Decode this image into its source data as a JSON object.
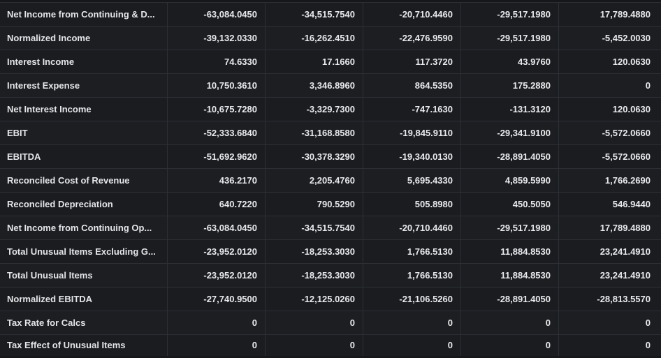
{
  "table": {
    "rows": [
      {
        "label": "Net Income from Continuing & D...",
        "values": [
          "-63,084.0450",
          "-34,515.7540",
          "-20,710.4460",
          "-29,517.1980",
          "17,789.4880"
        ]
      },
      {
        "label": "Normalized Income",
        "values": [
          "-39,132.0330",
          "-16,262.4510",
          "-22,476.9590",
          "-29,517.1980",
          "-5,452.0030"
        ]
      },
      {
        "label": "Interest Income",
        "values": [
          "74.6330",
          "17.1660",
          "117.3720",
          "43.9760",
          "120.0630"
        ]
      },
      {
        "label": "Interest Expense",
        "values": [
          "10,750.3610",
          "3,346.8960",
          "864.5350",
          "175.2880",
          "0"
        ]
      },
      {
        "label": "Net Interest Income",
        "values": [
          "-10,675.7280",
          "-3,329.7300",
          "-747.1630",
          "-131.3120",
          "120.0630"
        ]
      },
      {
        "label": "EBIT",
        "values": [
          "-52,333.6840",
          "-31,168.8580",
          "-19,845.9110",
          "-29,341.9100",
          "-5,572.0660"
        ]
      },
      {
        "label": "EBITDA",
        "values": [
          "-51,692.9620",
          "-30,378.3290",
          "-19,340.0130",
          "-28,891.4050",
          "-5,572.0660"
        ]
      },
      {
        "label": "Reconciled Cost of Revenue",
        "values": [
          "436.2170",
          "2,205.4760",
          "5,695.4330",
          "4,859.5990",
          "1,766.2690"
        ]
      },
      {
        "label": "Reconciled Depreciation",
        "values": [
          "640.7220",
          "790.5290",
          "505.8980",
          "450.5050",
          "546.9440"
        ]
      },
      {
        "label": "Net Income from Continuing Op...",
        "values": [
          "-63,084.0450",
          "-34,515.7540",
          "-20,710.4460",
          "-29,517.1980",
          "17,789.4880"
        ]
      },
      {
        "label": "Total Unusual Items Excluding G...",
        "values": [
          "-23,952.0120",
          "-18,253.3030",
          "1,766.5130",
          "11,884.8530",
          "23,241.4910"
        ]
      },
      {
        "label": "Total Unusual Items",
        "values": [
          "-23,952.0120",
          "-18,253.3030",
          "1,766.5130",
          "11,884.8530",
          "23,241.4910"
        ]
      },
      {
        "label": "Normalized EBITDA",
        "values": [
          "-27,740.9500",
          "-12,125.0260",
          "-21,106.5260",
          "-28,891.4050",
          "-28,813.5570"
        ]
      },
      {
        "label": "Tax Rate for Calcs",
        "values": [
          "0",
          "0",
          "0",
          "0",
          "0"
        ]
      },
      {
        "label": "Tax Effect of Unusual Items",
        "values": [
          "0",
          "0",
          "0",
          "0",
          "0"
        ]
      }
    ]
  }
}
